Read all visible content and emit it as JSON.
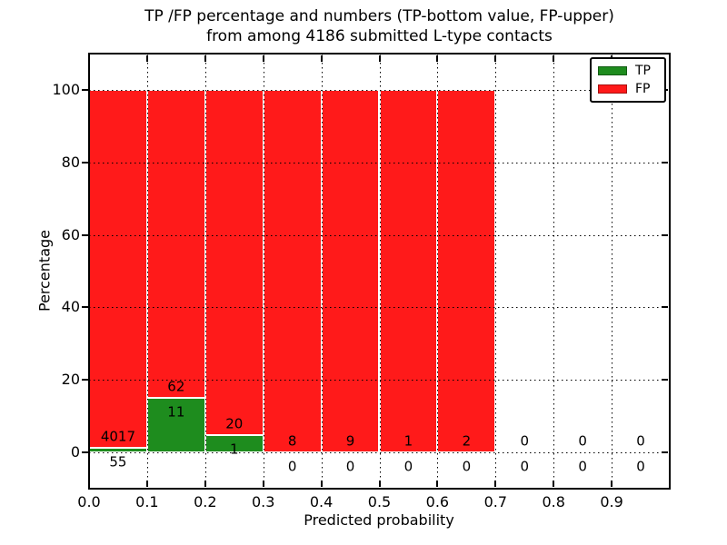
{
  "title": {
    "line1": "TP /FP percentage and numbers (TP-bottom value, FP-upper)",
    "line2": "from among 4186 submitted L-type contacts"
  },
  "legend": {
    "items": [
      {
        "label": "TP",
        "color": "#1e8c1e"
      },
      {
        "label": "FP",
        "color": "#ff1a1a"
      }
    ],
    "position": "upper right"
  },
  "chart_data": {
    "type": "bar",
    "stacked": true,
    "title": "TP /FP percentage and numbers (TP-bottom value, FP-upper) from among 4186 submitted L-type contacts",
    "total_submitted": 4186,
    "xlabel": "Predicted probability",
    "ylabel": "Percentage",
    "xlim": [
      0.0,
      1.0
    ],
    "ylim": [
      -10,
      110
    ],
    "xticks": [
      "0.0",
      "0.1",
      "0.2",
      "0.3",
      "0.4",
      "0.5",
      "0.6",
      "0.7",
      "0.8",
      "0.9"
    ],
    "yticks": [
      0,
      20,
      40,
      60,
      80,
      100
    ],
    "grid": "dotted black, both axes, drawn above bars",
    "bin_width": 0.1,
    "bin_starts": [
      0.0,
      0.1,
      0.2,
      0.3,
      0.4,
      0.5,
      0.6,
      0.7,
      0.8,
      0.9
    ],
    "series": [
      {
        "name": "TP",
        "color": "#1e8c1e",
        "counts": [
          55,
          11,
          1,
          0,
          0,
          0,
          0,
          0,
          0,
          0
        ],
        "pct": [
          1.35,
          15.07,
          4.76,
          0,
          0,
          0,
          0,
          null,
          null,
          null
        ]
      },
      {
        "name": "FP",
        "color": "#ff1a1a",
        "counts": [
          4017,
          62,
          20,
          8,
          9,
          1,
          2,
          0,
          0,
          0
        ],
        "pct": [
          98.65,
          84.93,
          95.24,
          100,
          100,
          100,
          100,
          null,
          null,
          null
        ]
      }
    ],
    "bar_edge_color": "#ffffff",
    "label_note": "TP count printed below each bar base, FP count printed just above TP segment top"
  }
}
